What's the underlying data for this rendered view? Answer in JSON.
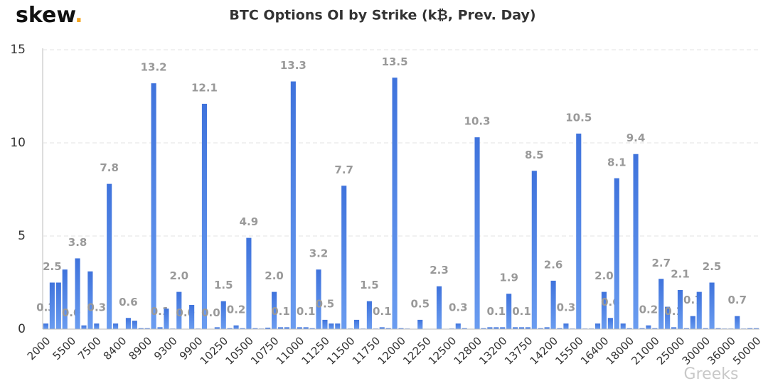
{
  "brand": {
    "name": "skew",
    "dot": "."
  },
  "watermark": "Greeks",
  "chart_data": {
    "type": "bar",
    "title": "BTC Options OI by Strike (k₿, Prev. Day)",
    "color": "#4a7fe3",
    "grid": true,
    "ylim": [
      0,
      15
    ],
    "yticks": [
      0,
      5,
      10,
      15
    ],
    "categories": [
      "2000",
      null,
      null,
      null,
      "5500",
      null,
      null,
      null,
      "7500",
      null,
      null,
      null,
      "8400",
      null,
      null,
      null,
      "8900",
      null,
      null,
      null,
      "9300",
      null,
      null,
      null,
      "9900",
      null,
      null,
      null,
      "10250",
      null,
      null,
      null,
      "10500",
      null,
      null,
      null,
      "10750",
      null,
      null,
      null,
      "11000",
      null,
      null,
      null,
      "11250",
      null,
      null,
      null,
      "11500",
      null,
      null,
      null,
      "11750",
      null,
      null,
      null,
      "12000",
      null,
      null,
      null,
      "12250",
      null,
      null,
      null,
      "12500",
      null,
      null,
      null,
      "12800",
      null,
      null,
      null,
      "13200",
      null,
      null,
      null,
      "13750",
      null,
      null,
      null,
      "14200",
      null,
      null,
      null,
      "15500",
      null,
      null,
      null,
      "16400",
      null,
      null,
      null,
      "18000",
      null,
      null,
      null,
      "21000",
      null,
      null,
      null,
      "25000",
      null,
      null,
      null,
      "30000",
      null,
      null,
      null,
      "36000",
      null,
      null,
      null,
      "50000"
    ],
    "values": [
      0.3,
      2.5,
      2.5,
      3.2,
      0.02,
      3.8,
      0.2,
      3.1,
      0.3,
      0.02,
      7.8,
      0.3,
      0.02,
      0.6,
      0.45,
      0.05,
      0.05,
      13.2,
      0.1,
      1.1,
      0.03,
      2.0,
      0.02,
      1.3,
      0.03,
      12.1,
      0.02,
      0.1,
      1.5,
      0.05,
      0.2,
      0.05,
      4.9,
      0.05,
      0.03,
      0.08,
      2.0,
      0.1,
      0.1,
      13.3,
      0.1,
      0.1,
      0.05,
      3.2,
      0.5,
      0.3,
      0.3,
      7.7,
      0.03,
      0.5,
      0.03,
      1.5,
      0.03,
      0.1,
      0.05,
      13.5,
      0.05,
      0.03,
      0.02,
      0.5,
      0.02,
      0.02,
      2.3,
      0.02,
      0.03,
      0.3,
      0.05,
      0.02,
      10.3,
      0.05,
      0.1,
      0.1,
      0.1,
      1.9,
      0.1,
      0.1,
      0.1,
      8.5,
      0.05,
      0.1,
      2.6,
      0.05,
      0.3,
      0.03,
      10.5,
      0.03,
      0.03,
      0.3,
      2.0,
      0.6,
      8.1,
      0.3,
      0.05,
      9.4,
      0.05,
      0.2,
      0.05,
      2.7,
      1.2,
      0.1,
      2.1,
      0.05,
      0.7,
      2.0,
      0.05,
      2.5,
      0.05,
      0.03,
      0.03,
      0.7,
      0.03,
      0.05,
      0.05
    ],
    "value_labels": [
      "0.3",
      "2.5",
      null,
      null,
      "0.0",
      "3.8",
      null,
      null,
      "0.3",
      null,
      "7.8",
      null,
      null,
      "0.6",
      null,
      null,
      null,
      "13.2",
      "0.1",
      null,
      null,
      "2.0",
      "0.0",
      null,
      null,
      "12.1",
      "0.0",
      null,
      "1.5",
      null,
      "0.2",
      null,
      "4.9",
      null,
      null,
      null,
      "2.0",
      "0.1",
      null,
      "13.3",
      null,
      "0.1",
      null,
      "3.2",
      "0.5",
      null,
      null,
      "7.7",
      null,
      null,
      null,
      "1.5",
      null,
      "0.1",
      null,
      "13.5",
      null,
      null,
      null,
      "0.5",
      null,
      null,
      "2.3",
      null,
      null,
      "0.3",
      null,
      null,
      "10.3",
      null,
      null,
      "0.1",
      null,
      "1.9",
      null,
      "0.1",
      null,
      "8.5",
      null,
      null,
      "2.6",
      null,
      "0.3",
      null,
      "10.5",
      null,
      null,
      null,
      "2.0",
      "0.6",
      "8.1",
      null,
      null,
      "9.4",
      null,
      "0.2",
      null,
      "2.7",
      null,
      "0.1",
      "2.1",
      null,
      "0.7",
      null,
      null,
      "2.5",
      null,
      null,
      null,
      "0.7",
      null,
      null,
      null
    ]
  }
}
